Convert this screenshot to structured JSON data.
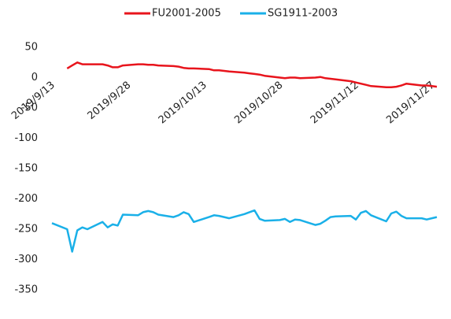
{
  "chart_data": {
    "type": "line",
    "x": [
      "2019/9/13",
      "2019/9/16",
      "2019/9/17",
      "2019/9/18",
      "2019/9/19",
      "2019/9/20",
      "2019/9/23",
      "2019/9/24",
      "2019/9/25",
      "2019/9/26",
      "2019/9/27",
      "2019/9/30",
      "2019/10/1",
      "2019/10/2",
      "2019/10/3",
      "2019/10/4",
      "2019/10/7",
      "2019/10/8",
      "2019/10/9",
      "2019/10/10",
      "2019/10/11",
      "2019/10/14",
      "2019/10/15",
      "2019/10/16",
      "2019/10/17",
      "2019/10/18",
      "2019/10/21",
      "2019/10/22",
      "2019/10/23",
      "2019/10/24",
      "2019/10/25",
      "2019/10/28",
      "2019/10/29",
      "2019/10/30",
      "2019/10/31",
      "2019/11/1",
      "2019/11/4",
      "2019/11/5",
      "2019/11/6",
      "2019/11/7",
      "2019/11/8",
      "2019/11/11",
      "2019/11/12",
      "2019/11/13",
      "2019/11/14",
      "2019/11/15",
      "2019/11/18",
      "2019/11/19",
      "2019/11/20",
      "2019/11/21",
      "2019/11/22",
      "2019/11/25",
      "2019/11/26",
      "2019/11/27",
      "2019/11/28"
    ],
    "series": [
      {
        "name": "FU2001-2005",
        "color": "#e8141c",
        "values": [
          null,
          15,
          20,
          25,
          22,
          22,
          22,
          20,
          17,
          17,
          20,
          22,
          22,
          21,
          21,
          20,
          19,
          18,
          16,
          15,
          15,
          14,
          12,
          12,
          11,
          10,
          8,
          7,
          6,
          5,
          3,
          0,
          -1,
          0,
          0,
          -1,
          0,
          1,
          -1,
          -2,
          -3,
          -6,
          -8,
          -10,
          -12,
          -14,
          -16,
          -16,
          -15,
          -13,
          -10,
          -13,
          -13,
          -14,
          -15
        ]
      },
      {
        "name": "SG1911-2003",
        "color": "#1ab0e8",
        "values": [
          -240,
          -250,
          -287,
          -252,
          -247,
          -250,
          -238,
          -247,
          -242,
          -244,
          -226,
          -227,
          -222,
          -220,
          -222,
          -226,
          -230,
          -227,
          -222,
          -225,
          -238,
          -230,
          -227,
          -228,
          -230,
          -232,
          -225,
          -222,
          -219,
          -233,
          -236,
          -235,
          -233,
          -238,
          -234,
          -235,
          -243,
          -241,
          -236,
          -230,
          -229,
          -228,
          -234,
          -223,
          -220,
          -227,
          -237,
          -224,
          -221,
          -228,
          -232,
          -232,
          -234,
          -232,
          -230
        ]
      }
    ],
    "xlim": [
      "2019/9/13",
      "2019/11/28"
    ],
    "xticks": [
      "2019/9/13",
      "2019/9/28",
      "2019/10/13",
      "2019/10/28",
      "2019/11/12",
      "2019/11/27"
    ],
    "ylim": [
      -350,
      50
    ],
    "yticks": [
      -350,
      -300,
      -250,
      -200,
      -150,
      -100,
      -50,
      0,
      50
    ],
    "legend": "top"
  }
}
